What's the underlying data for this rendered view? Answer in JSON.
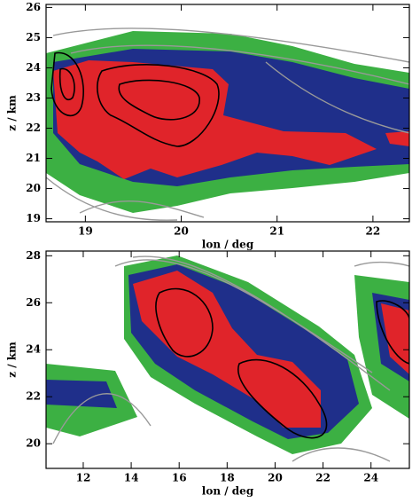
{
  "chart_data": [
    {
      "type": "field",
      "x_label": "lon / deg",
      "y_label": "z / km",
      "xlim": [
        18.59,
        22.38
      ],
      "xticks": [
        19,
        20,
        21,
        22
      ],
      "ylim": [
        18.9,
        26.1
      ],
      "yticks": [
        19,
        20,
        21,
        22,
        23,
        24,
        25,
        26
      ]
    },
    {
      "type": "field",
      "x_label": "lon / deg",
      "y_label": "z / km",
      "xlim": [
        10.45,
        25.6
      ],
      "xticks": [
        12,
        14,
        16,
        18,
        20,
        22,
        24
      ],
      "ylim": [
        18.95,
        28.2
      ],
      "yticks": [
        20,
        22,
        24,
        26,
        28
      ]
    }
  ]
}
